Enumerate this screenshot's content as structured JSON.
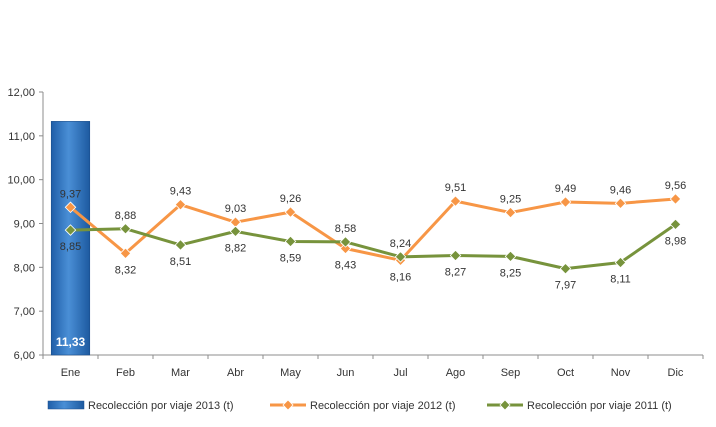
{
  "chart_data": {
    "type": "bar+line",
    "categories": [
      "Ene",
      "Feb",
      "Mar",
      "Abr",
      "May",
      "Jun",
      "Jul",
      "Ago",
      "Sep",
      "Oct",
      "Nov",
      "Dic"
    ],
    "y_ticks": [
      "6,00",
      "7,00",
      "8,00",
      "9,00",
      "10,00",
      "11,00",
      "12,00"
    ],
    "ylim": [
      6,
      12
    ],
    "grid": false,
    "legend_position": "bottom",
    "series": [
      {
        "name": "Recolección por viaje 2013 (t)",
        "kind": "bar",
        "color": "#2e75b6",
        "values": [
          11.33,
          null,
          null,
          null,
          null,
          null,
          null,
          null,
          null,
          null,
          null,
          null
        ],
        "labels": [
          "11,33",
          "",
          "",
          "",
          "",
          "",
          "",
          "",
          "",
          "",
          "",
          ""
        ]
      },
      {
        "name": "Recolección por viaje 2012 (t)",
        "kind": "line",
        "color": "#f79646",
        "values": [
          9.37,
          8.32,
          9.43,
          9.03,
          9.26,
          8.43,
          8.16,
          9.51,
          9.25,
          9.49,
          9.46,
          9.56
        ],
        "labels": [
          "9,37",
          "8,32",
          "9,43",
          "9,03",
          "9,26",
          "8,43",
          "8,16",
          "9,51",
          "9,25",
          "9,49",
          "9,46",
          "9,56"
        ]
      },
      {
        "name": "Recolección por viaje 2011 (t)",
        "kind": "line",
        "color": "#77933c",
        "values": [
          8.85,
          8.88,
          8.51,
          8.82,
          8.59,
          8.58,
          8.24,
          8.27,
          8.25,
          7.97,
          8.11,
          8.98
        ],
        "labels": [
          "8,85",
          "8,88",
          "8,51",
          "8,82",
          "8,59",
          "8,58",
          "8,24",
          "8,27",
          "8,25",
          "7,97",
          "8,11",
          "8,98"
        ]
      }
    ]
  }
}
